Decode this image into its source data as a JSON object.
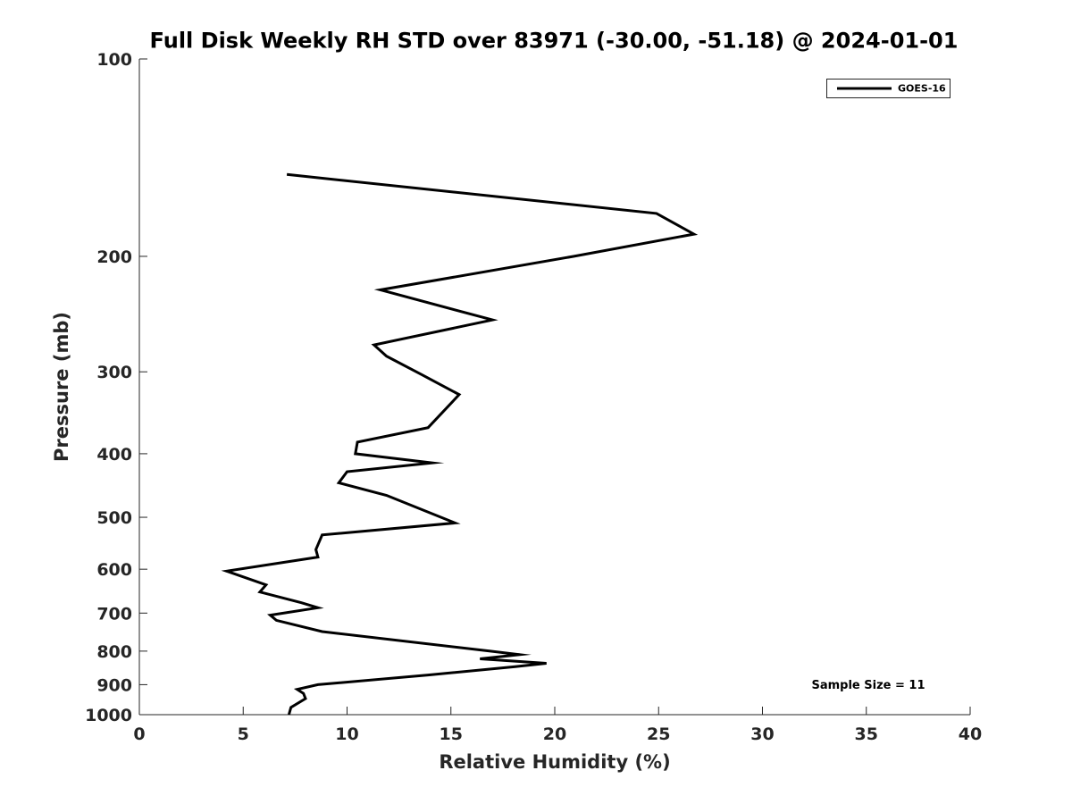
{
  "chart_data": {
    "type": "line",
    "title": "Full Disk Weekly RH STD over 83971 (-30.00, -51.18) @ 2024-01-01",
    "xlabel": "Relative Humidity (%)",
    "ylabel": "Pressure (mb)",
    "xlim": [
      0,
      40
    ],
    "ylim": [
      1000,
      100
    ],
    "yscale": "log",
    "xticks": [
      0,
      5,
      10,
      15,
      20,
      25,
      30,
      35,
      40
    ],
    "yticks": [
      100,
      200,
      300,
      400,
      500,
      600,
      700,
      800,
      900,
      1000
    ],
    "grid": false,
    "legend_position": "top-right",
    "annotation": "Sample Size = 11",
    "series": [
      {
        "name": "GOES-16",
        "color": "#000000",
        "x": [
          7.1,
          24.9,
          26.7,
          20.9,
          11.6,
          17.0,
          11.3,
          11.9,
          13.6,
          15.4,
          13.9,
          10.5,
          10.4,
          14.1,
          10.0,
          9.6,
          11.9,
          15.2,
          8.8,
          8.5,
          8.6,
          4.2,
          6.1,
          5.8,
          7.8,
          8.6,
          6.3,
          6.6,
          8.8,
          16.9,
          18.3,
          16.4,
          19.6,
          18.1,
          13.9,
          8.6,
          7.6,
          7.9,
          8.0,
          7.3,
          7.2
        ],
        "y": [
          150,
          172,
          185,
          200,
          225,
          250,
          273,
          284,
          303,
          325,
          365,
          384,
          400,
          413,
          426,
          443,
          463,
          510,
          532,
          560,
          575,
          604,
          634,
          650,
          675,
          687,
          705,
          718,
          747,
          800,
          810,
          822,
          835,
          845,
          870,
          900,
          915,
          928,
          945,
          975,
          1000
        ]
      }
    ]
  }
}
